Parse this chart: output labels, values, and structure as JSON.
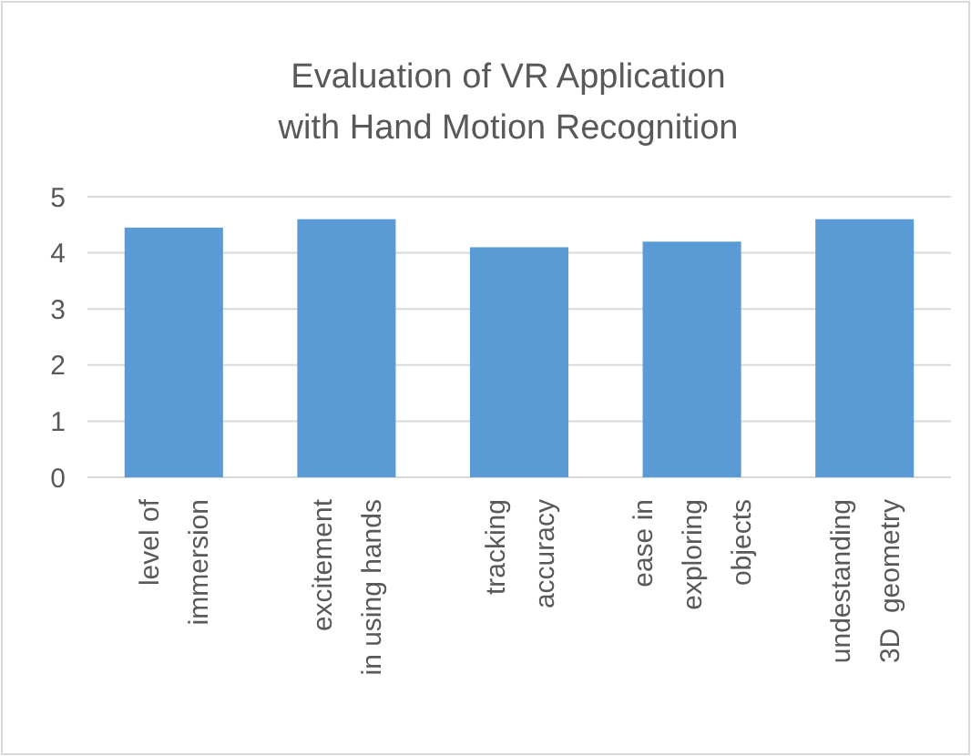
{
  "chart_data": {
    "type": "bar",
    "title": "Evaluation of VR Application\nwith Hand Motion Recognition",
    "categories": [
      "level of\nimmersion",
      "excitement\nin using hands",
      "tracking\naccuracy",
      "ease in\nexploring\nobjects",
      "undestanding\n3D  geometry"
    ],
    "values": [
      4.45,
      4.6,
      4.1,
      4.2,
      4.6
    ],
    "color": "#5b9bd5",
    "ylim": [
      0,
      5
    ],
    "yticks": [
      0,
      1,
      2,
      3,
      4,
      5
    ],
    "grid": "y"
  }
}
